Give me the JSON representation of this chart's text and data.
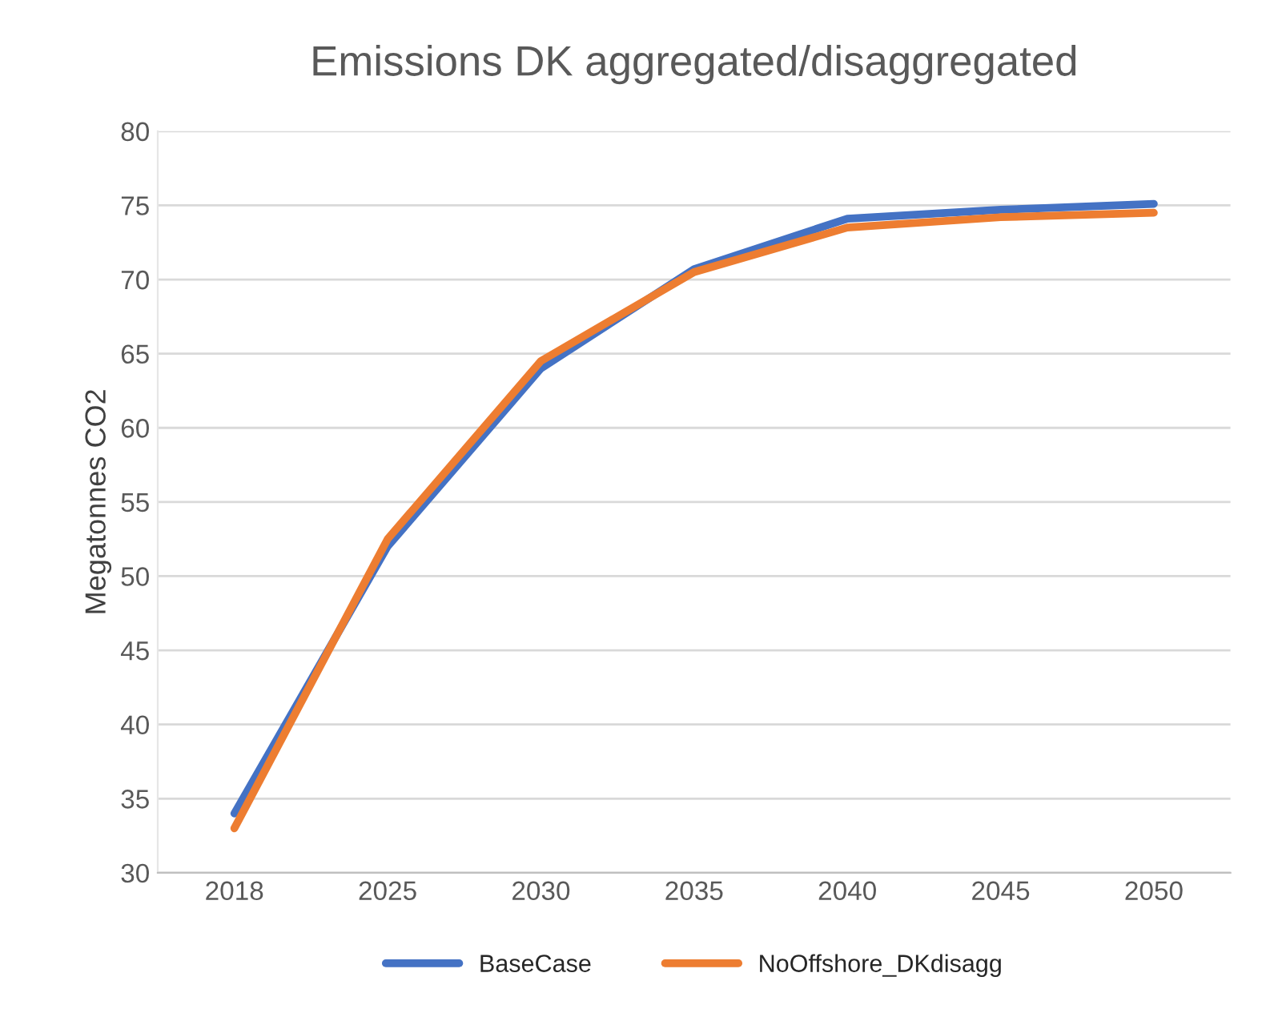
{
  "chart_data": {
    "type": "line",
    "title": "Emissions DK aggregated/disaggregated",
    "ylabel": "Megatonnes CO2",
    "categories": [
      "2018",
      "2025",
      "2030",
      "2035",
      "2040",
      "2045",
      "2050"
    ],
    "series": [
      {
        "name": "BaseCase",
        "color": "#4472c4",
        "values": [
          34,
          52,
          64,
          70.7,
          74.1,
          74.7,
          75.1
        ]
      },
      {
        "name": "NoOffshore_DKdisagg",
        "color": "#ed7d31",
        "values": [
          33,
          52.5,
          64.5,
          70.5,
          73.5,
          74.2,
          74.5
        ]
      }
    ],
    "ylim": [
      30,
      80
    ],
    "yticks": [
      30,
      35,
      40,
      45,
      50,
      55,
      60,
      65,
      70,
      75,
      80
    ],
    "grid": "y",
    "legend": "bottom",
    "marker": "none",
    "line_style": "solid"
  }
}
